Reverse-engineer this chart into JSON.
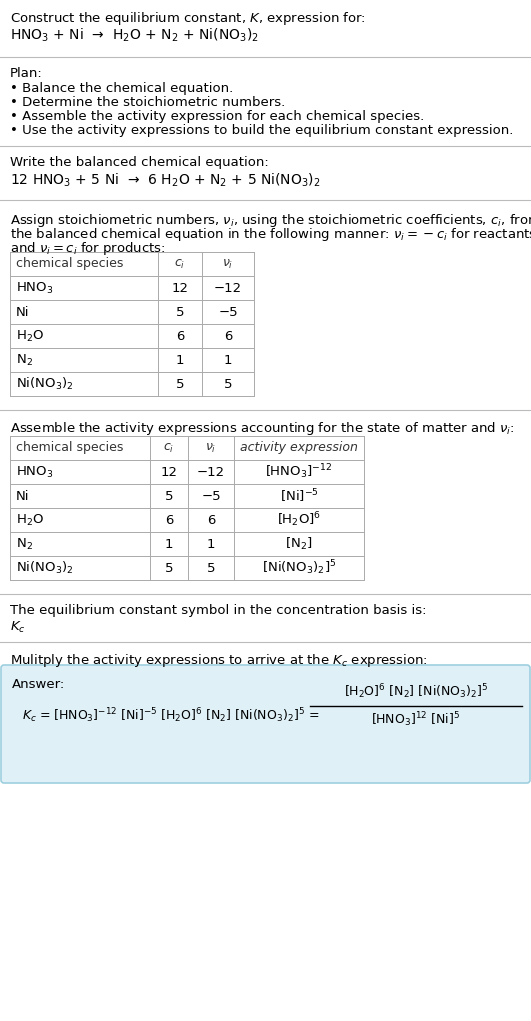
{
  "title_line1": "Construct the equilibrium constant, $K$, expression for:",
  "title_line2": "HNO$_3$ + Ni  →  H$_2$O + N$_2$ + Ni(NO$_3$)$_2$",
  "plan_header": "Plan:",
  "plan_items": [
    "• Balance the chemical equation.",
    "• Determine the stoichiometric numbers.",
    "• Assemble the activity expression for each chemical species.",
    "• Use the activity expressions to build the equilibrium constant expression."
  ],
  "balanced_header": "Write the balanced chemical equation:",
  "balanced_eq": "12 HNO$_3$ + 5 Ni  →  6 H$_2$O + N$_2$ + 5 Ni(NO$_3$)$_2$",
  "stoich_header1": "Assign stoichiometric numbers, $\\nu_i$, using the stoichiometric coefficients, $c_i$, from",
  "stoich_header2": "the balanced chemical equation in the following manner: $\\nu_i = -c_i$ for reactants",
  "stoich_header3": "and $\\nu_i = c_i$ for products:",
  "table1_cols": [
    "chemical species",
    "$c_i$",
    "$\\nu_i$"
  ],
  "table1_data": [
    [
      "HNO$_3$",
      "12",
      "−12"
    ],
    [
      "Ni",
      "5",
      "−5"
    ],
    [
      "H$_2$O",
      "6",
      "6"
    ],
    [
      "N$_2$",
      "1",
      "1"
    ],
    [
      "Ni(NO$_3$)$_2$",
      "5",
      "5"
    ]
  ],
  "activity_header": "Assemble the activity expressions accounting for the state of matter and $\\nu_i$:",
  "table2_cols": [
    "chemical species",
    "$c_i$",
    "$\\nu_i$",
    "activity expression"
  ],
  "table2_data": [
    [
      "HNO$_3$",
      "12",
      "−12",
      "[HNO$_3$]$^{-12}$"
    ],
    [
      "Ni",
      "5",
      "−5",
      "[Ni]$^{-5}$"
    ],
    [
      "H$_2$O",
      "6",
      "6",
      "[H$_2$O]$^6$"
    ],
    [
      "N$_2$",
      "1",
      "1",
      "[N$_2$]"
    ],
    [
      "Ni(NO$_3$)$_2$",
      "5",
      "5",
      "[Ni(NO$_3$)$_2$]$^5$"
    ]
  ],
  "kc_header": "The equilibrium constant symbol in the concentration basis is:",
  "kc_symbol": "$K_c$",
  "multiply_header": "Mulitply the activity expressions to arrive at the $K_c$ expression:",
  "bg_color": "#ffffff",
  "answer_box_bg": "#dff0f7",
  "answer_box_border": "#9ecfdf",
  "separator_color": "#bbbbbb",
  "font_size": 9.5,
  "table_font_size": 9.5
}
